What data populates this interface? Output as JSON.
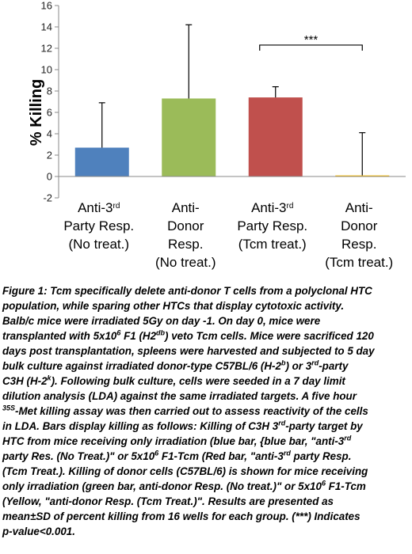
{
  "chart_data": {
    "type": "bar",
    "ylabel": "% Killing",
    "ylim": [
      -2,
      16
    ],
    "yticks": [
      -2,
      0,
      2,
      4,
      6,
      8,
      10,
      12,
      14,
      16
    ],
    "categories": [
      {
        "lines": [
          "Anti-3rd",
          "Party Resp.",
          "(No treat.)"
        ],
        "sup_line": 0,
        "sup": "rd"
      },
      {
        "lines": [
          "Anti-",
          "Donor",
          "Resp.",
          "(No treat.)"
        ]
      },
      {
        "lines": [
          "Anti-3rd",
          "Party Resp.",
          "(Tcm treat.)"
        ],
        "sup_line": 0,
        "sup": "rd"
      },
      {
        "lines": [
          "Anti-",
          "Donor",
          "Resp.",
          "(Tcm treat.)"
        ]
      }
    ],
    "values": [
      2.7,
      7.3,
      7.4,
      0.1
    ],
    "errors": [
      4.2,
      6.9,
      1.0,
      4.0
    ],
    "colors": [
      "#4f81bd",
      "#9bbb59",
      "#c0504d",
      "#ffc000"
    ],
    "significance": {
      "from": 2,
      "to": 3,
      "label": "***"
    }
  },
  "caption": {
    "lines": [
      "Figure 1: Tcm specifically delete anti-donor T cells from a polyclonal HTC",
      "population, while sparing other HTCs that display cytotoxic activity.",
      "Balb/c mice were irradiated 5Gy on day -1. On day 0, mice were",
      "transplanted with 5x10^6 F1 (H2^db) veto Tcm cells. Mice were sacrificed 120",
      "days post transplantation, spleens were harvested and subjected to 5 day",
      "bulk culture against irradiated donor-type C57BL/6 (H-2^b) or 3^rd-party",
      "C3H (H-2^k). Following bulk culture, cells were seeded in a 7 day limit",
      "dilution analysis (LDA) against the same irradiated targets. A five hour",
      "^35S-Met killing assay was then carried out to assess reactivity of the cells",
      "in LDA. Bars display killing as follows: Killing of C3H 3^rd-party target by",
      "HTC from mice receiving only irradiation (blue bar, {blue bar, \"anti-3^rd",
      "party Res. (No Treat.)\" or 5x10^6 F1-Tcm (Red bar, \"anti-3^rd party Resp.",
      "(Tcm Treat.). Killing of donor cells (C57BL/6) is shown for mice receiving",
      "only irradiation (green bar, anti-donor Resp. (No treat.)\" or 5x10^6 F1-Tcm",
      "(Yellow, \"anti-donor Resp. (Tcm Treat.)\". Results are presented as",
      "mean±SD of percent killing from 16 wells for each group. (***) Indicates",
      "p-value<0.001."
    ]
  }
}
